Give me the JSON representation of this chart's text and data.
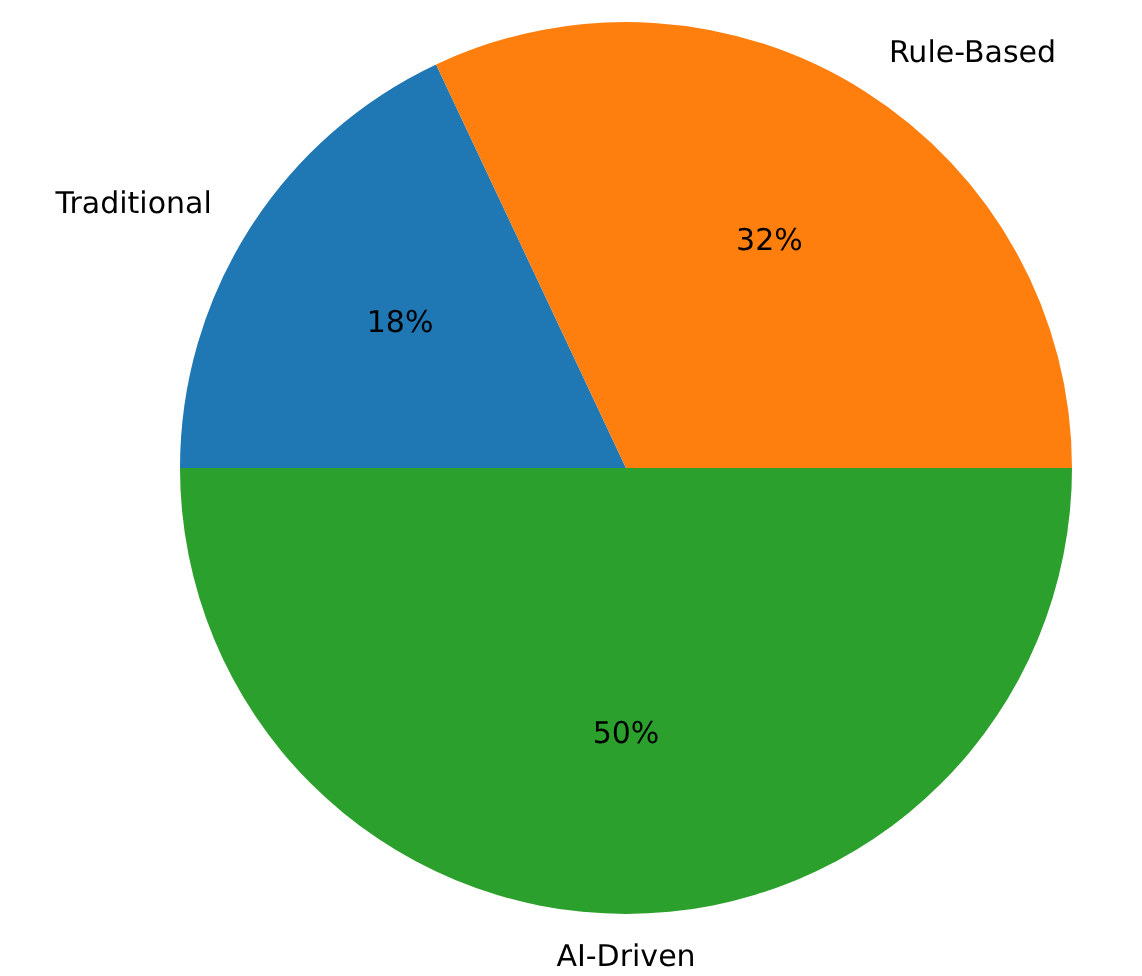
{
  "chart_data": {
    "type": "pie",
    "categories": [
      "Traditional",
      "Rule-Based",
      "AI-Driven"
    ],
    "values": [
      18,
      32,
      50
    ],
    "colors": [
      "#1f77b4",
      "#ff7f0e",
      "#2ca02c"
    ],
    "value_labels": [
      "18%",
      "32%",
      "50%"
    ],
    "legend": false
  }
}
